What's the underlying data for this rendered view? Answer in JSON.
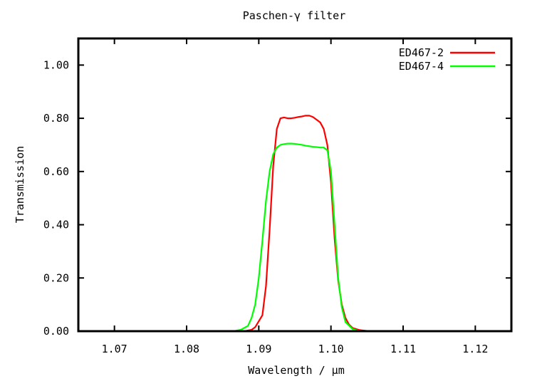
{
  "chart_data": {
    "type": "line",
    "title": "Paschen-γ filter",
    "xlabel": "Wavelength / µm",
    "ylabel": "Transmission",
    "xlim": [
      1.065,
      1.125
    ],
    "ylim": [
      0,
      1.1
    ],
    "xticks": [
      {
        "value": 1.07,
        "label": "1.07"
      },
      {
        "value": 1.08,
        "label": "1.08"
      },
      {
        "value": 1.09,
        "label": "1.09"
      },
      {
        "value": 1.1,
        "label": "1.10"
      },
      {
        "value": 1.11,
        "label": "1.11"
      },
      {
        "value": 1.12,
        "label": "1.12"
      }
    ],
    "yticks": [
      {
        "value": 0.0,
        "label": "0.00"
      },
      {
        "value": 0.2,
        "label": "0.20"
      },
      {
        "value": 0.4,
        "label": "0.40"
      },
      {
        "value": 0.6,
        "label": "0.60"
      },
      {
        "value": 0.8,
        "label": "0.80"
      },
      {
        "value": 1.0,
        "label": "1.00"
      }
    ],
    "grid": false,
    "legend": "top-right",
    "series": [
      {
        "name": "ED467-2",
        "color": "#ff0000",
        "x": [
          1.065,
          1.088,
          1.089,
          1.0895,
          1.0905,
          1.091,
          1.0915,
          1.092,
          1.0925,
          1.093,
          1.0935,
          1.094,
          1.0945,
          1.095,
          1.0955,
          1.096,
          1.0965,
          1.097,
          1.0975,
          1.098,
          1.0985,
          1.099,
          1.0995,
          1.1,
          1.1005,
          1.101,
          1.1015,
          1.102,
          1.1025,
          1.103,
          1.104,
          1.105,
          1.106,
          1.107,
          1.125
        ],
        "y": [
          0.0,
          0.0,
          0.005,
          0.015,
          0.06,
          0.17,
          0.38,
          0.62,
          0.76,
          0.8,
          0.803,
          0.8,
          0.8,
          0.802,
          0.805,
          0.807,
          0.81,
          0.81,
          0.805,
          0.795,
          0.785,
          0.76,
          0.7,
          0.56,
          0.35,
          0.19,
          0.1,
          0.05,
          0.025,
          0.012,
          0.004,
          0.001,
          0.0,
          0.0,
          0.0
        ]
      },
      {
        "name": "ED467-4",
        "color": "#00ff00",
        "x": [
          1.065,
          1.0865,
          1.0875,
          1.0885,
          1.089,
          1.0895,
          1.09,
          1.0905,
          1.091,
          1.0915,
          1.092,
          1.0925,
          1.093,
          1.0935,
          1.094,
          1.0945,
          1.095,
          1.0955,
          1.096,
          1.0965,
          1.097,
          1.0975,
          1.098,
          1.0985,
          1.099,
          1.0995,
          1.1,
          1.1005,
          1.101,
          1.1015,
          1.102,
          1.103,
          1.104,
          1.125
        ],
        "y": [
          0.0,
          0.0,
          0.005,
          0.02,
          0.05,
          0.1,
          0.2,
          0.34,
          0.49,
          0.6,
          0.665,
          0.69,
          0.7,
          0.703,
          0.705,
          0.705,
          0.704,
          0.702,
          0.7,
          0.697,
          0.695,
          0.693,
          0.692,
          0.69,
          0.69,
          0.68,
          0.6,
          0.4,
          0.2,
          0.09,
          0.035,
          0.008,
          0.0,
          0.0
        ]
      }
    ]
  }
}
